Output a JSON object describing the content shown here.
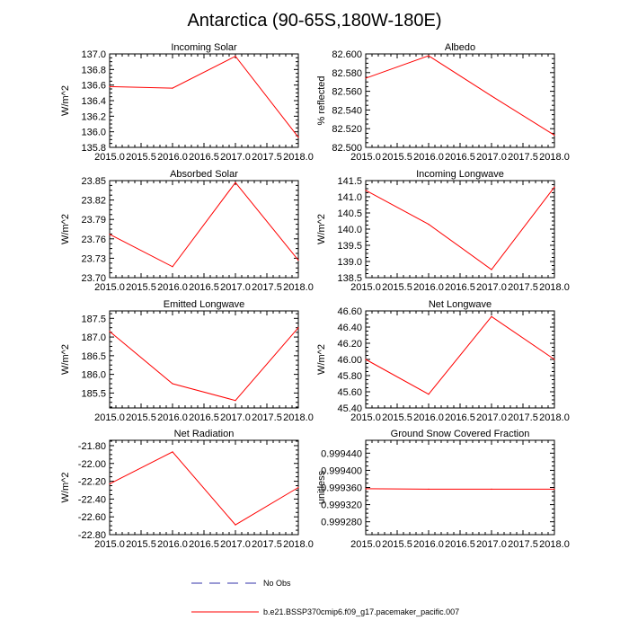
{
  "figure": {
    "title": "Antarctica (90-65S,180W-180E)"
  },
  "chart_data": [
    {
      "type": "line",
      "title": "Incoming Solar",
      "xlabel": "",
      "ylabel": "W/m^2",
      "x": [
        2015,
        2016,
        2017,
        2018
      ],
      "series": [
        {
          "name": "b.e21.BSSP370cmip6.f09_g17.pacemaker_pacific.007",
          "values": [
            136.58,
            136.56,
            136.97,
            135.93
          ],
          "color": "#ff0000"
        }
      ],
      "xlim": [
        2015,
        2018
      ],
      "ylim": [
        135.8,
        137.0
      ],
      "xticks": [
        "2015.0",
        "2015.5",
        "2016.0",
        "2016.5",
        "2017.0",
        "2017.5",
        "2018.0"
      ],
      "yticks": [
        "135.8",
        "136.0",
        "136.2",
        "136.4",
        "136.6",
        "136.8",
        "137.0"
      ]
    },
    {
      "type": "line",
      "title": "Albedo",
      "xlabel": "",
      "ylabel": "% reflected",
      "x": [
        2015,
        2016,
        2017,
        2018
      ],
      "series": [
        {
          "name": "b.e21.BSSP370cmip6.f09_g17.pacemaker_pacific.007",
          "values": [
            82.574,
            82.598,
            82.555,
            82.513
          ],
          "color": "#ff0000"
        }
      ],
      "xlim": [
        2015,
        2018
      ],
      "ylim": [
        82.5,
        82.6
      ],
      "xticks": [
        "2015.0",
        "2015.5",
        "2016.0",
        "2016.5",
        "2017.0",
        "2017.5",
        "2018.0"
      ],
      "yticks": [
        "82.500",
        "82.520",
        "82.540",
        "82.560",
        "82.580",
        "82.600"
      ]
    },
    {
      "type": "line",
      "title": "Absorbed Solar",
      "xlabel": "",
      "ylabel": "W/m^2",
      "x": [
        2015,
        2016,
        2017,
        2018
      ],
      "series": [
        {
          "name": "b.e21.BSSP370cmip6.f09_g17.pacemaker_pacific.007",
          "values": [
            23.767,
            23.717,
            23.847,
            23.727
          ],
          "color": "#ff0000"
        }
      ],
      "xlim": [
        2015,
        2018
      ],
      "ylim": [
        23.7,
        23.85
      ],
      "xticks": [
        "2015.0",
        "2015.5",
        "2016.0",
        "2016.5",
        "2017.0",
        "2017.5",
        "2018.0"
      ],
      "yticks": [
        "23.70",
        "23.73",
        "23.76",
        "23.79",
        "23.82",
        "23.85"
      ]
    },
    {
      "type": "line",
      "title": "Incoming Longwave",
      "xlabel": "",
      "ylabel": "W/m^2",
      "x": [
        2015,
        2016,
        2017,
        2018
      ],
      "series": [
        {
          "name": "b.e21.BSSP370cmip6.f09_g17.pacemaker_pacific.007",
          "values": [
            141.2,
            140.15,
            138.75,
            141.3
          ],
          "color": "#ff0000"
        }
      ],
      "xlim": [
        2015,
        2018
      ],
      "ylim": [
        138.5,
        141.5
      ],
      "xticks": [
        "2015.0",
        "2015.5",
        "2016.0",
        "2016.5",
        "2017.0",
        "2017.5",
        "2018.0"
      ],
      "yticks": [
        "138.5",
        "139.0",
        "139.5",
        "140.0",
        "140.5",
        "141.0",
        "141.5"
      ]
    },
    {
      "type": "line",
      "title": "Emitted Longwave",
      "xlabel": "",
      "ylabel": "W/m^2",
      "x": [
        2015,
        2016,
        2017,
        2018
      ],
      "series": [
        {
          "name": "b.e21.BSSP370cmip6.f09_g17.pacemaker_pacific.007",
          "values": [
            187.15,
            185.75,
            185.3,
            187.25
          ],
          "color": "#ff0000"
        }
      ],
      "xlim": [
        2015,
        2018
      ],
      "ylim": [
        185.1,
        187.7
      ],
      "xticks": [
        "2015.0",
        "2015.5",
        "2016.0",
        "2016.5",
        "2017.0",
        "2017.5",
        "2018.0"
      ],
      "yticks": [
        "185.5",
        "186.0",
        "186.5",
        "187.0",
        "187.5"
      ]
    },
    {
      "type": "line",
      "title": "Net Longwave",
      "xlabel": "",
      "ylabel": "W/m^2",
      "x": [
        2015,
        2016,
        2017,
        2018
      ],
      "series": [
        {
          "name": "b.e21.BSSP370cmip6.f09_g17.pacemaker_pacific.007",
          "values": [
            46.0,
            45.57,
            46.53,
            46.0
          ],
          "color": "#ff0000"
        }
      ],
      "xlim": [
        2015,
        2018
      ],
      "ylim": [
        45.4,
        46.6
      ],
      "xticks": [
        "2015.0",
        "2015.5",
        "2016.0",
        "2016.5",
        "2017.0",
        "2017.5",
        "2018.0"
      ],
      "yticks": [
        "45.40",
        "45.60",
        "45.80",
        "46.00",
        "46.20",
        "46.40",
        "46.60"
      ]
    },
    {
      "type": "line",
      "title": "Net Radiation",
      "xlabel": "",
      "ylabel": "W/m^2",
      "x": [
        2015,
        2016,
        2017,
        2018
      ],
      "series": [
        {
          "name": "b.e21.BSSP370cmip6.f09_g17.pacemaker_pacific.007",
          "values": [
            -22.23,
            -21.87,
            -22.69,
            -22.27
          ],
          "color": "#ff0000"
        }
      ],
      "xlim": [
        2015,
        2018
      ],
      "ylim": [
        -22.8,
        -21.74
      ],
      "xticks": [
        "2015.0",
        "2015.5",
        "2016.0",
        "2016.5",
        "2017.0",
        "2017.5",
        "2018.0"
      ],
      "yticks": [
        "-22.80",
        "-22.60",
        "-22.40",
        "-22.20",
        "-22.00",
        "-21.80"
      ]
    },
    {
      "type": "line",
      "title": "Ground Snow Covered Fraction",
      "xlabel": "",
      "ylabel": "unitless",
      "x": [
        2015,
        2016,
        2017,
        2018
      ],
      "series": [
        {
          "name": "b.e21.BSSP370cmip6.f09_g17.pacemaker_pacific.007",
          "values": [
            0.999357,
            0.999356,
            0.999356,
            0.999356
          ],
          "color": "#ff0000"
        }
      ],
      "xlim": [
        2015,
        2018
      ],
      "ylim": [
        0.99925,
        0.99947
      ],
      "xticks": [
        "2015.0",
        "2015.5",
        "2016.0",
        "2016.5",
        "2017.0",
        "2017.5",
        "2018.0"
      ],
      "yticks": [
        "0.999280",
        "0.999320",
        "0.999360",
        "0.999400",
        "0.999440"
      ]
    }
  ],
  "legend": {
    "entries": [
      {
        "label": "No Obs",
        "style": "dashed",
        "color": "#3333aa"
      },
      {
        "label": "b.e21.BSSP370cmip6.f09_g17.pacemaker_pacific.007",
        "style": "solid",
        "color": "#ff0000"
      }
    ]
  }
}
